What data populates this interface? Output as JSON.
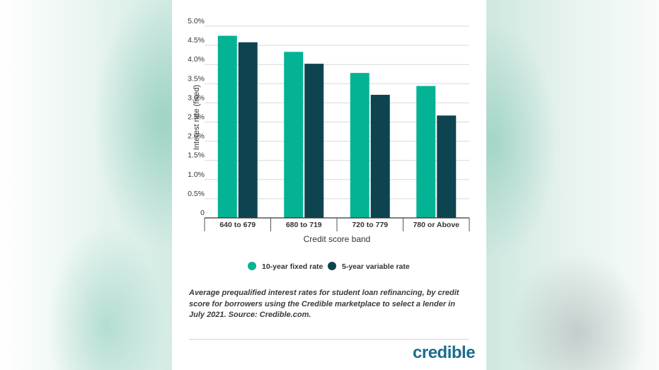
{
  "chart_data": {
    "type": "bar",
    "categories": [
      "640 to 679",
      "680 to 719",
      "720 to 779",
      "780 or Above"
    ],
    "series": [
      {
        "name": "10-year fixed rate",
        "color": "#03b394",
        "values": [
          4.75,
          4.33,
          3.78,
          3.44
        ]
      },
      {
        "name": "5-year variable rate",
        "color": "#0e4450",
        "values": [
          4.58,
          4.02,
          3.21,
          2.67
        ]
      }
    ],
    "xlabel": "Credit score band",
    "ylabel": "Interest rate (fixed)",
    "ylim": [
      0,
      5
    ],
    "yticks": [
      {
        "value": 0,
        "label": "0"
      },
      {
        "value": 0.5,
        "label": "0.5%"
      },
      {
        "value": 1.0,
        "label": "1.0%"
      },
      {
        "value": 1.5,
        "label": "1.5%"
      },
      {
        "value": 2.0,
        "label": "2.0%"
      },
      {
        "value": 2.5,
        "label": "2.5%"
      },
      {
        "value": 3.0,
        "label": "3.0%"
      },
      {
        "value": 3.5,
        "label": "3.5%"
      },
      {
        "value": 4.0,
        "label": "4.0%"
      },
      {
        "value": 4.5,
        "label": "4.5%"
      },
      {
        "value": 5.0,
        "label": "5.0%"
      }
    ],
    "grid": true,
    "legend": "bottom"
  },
  "caption": "Average prequalified interest rates for student loan refinancing, by credit score for borrowers using the Credible marketplace to select a lender in July 2021. Source: Credible.com.",
  "brand": {
    "logo_text": "credible",
    "color": "#1a6d8e"
  }
}
